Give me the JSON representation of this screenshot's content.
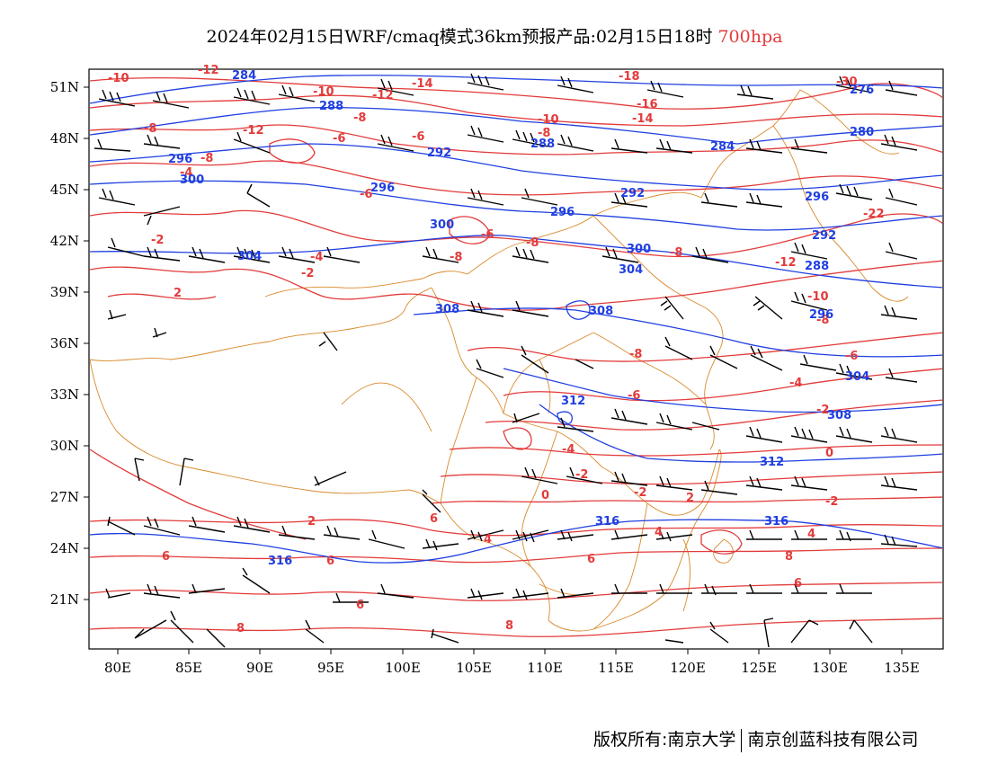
{
  "title": {
    "text": "2024年02月15日WRF/cmaq模式36km预报产品:02月15日18时",
    "level": "700hpa",
    "level_color": "#e53a3a"
  },
  "axes": {
    "lat_labels": [
      "51N",
      "48N",
      "45N",
      "42N",
      "39N",
      "36N",
      "33N",
      "30N",
      "27N",
      "24N",
      "21N"
    ],
    "lon_labels": [
      "80E",
      "85E",
      "90E",
      "95E",
      "100E",
      "105E",
      "110E",
      "115E",
      "120E",
      "125E",
      "130E",
      "135E"
    ]
  },
  "colors": {
    "temperature": "#e23b3b",
    "geopotential": "#1f3fe0",
    "borders": "#d98a2b",
    "wind_barbs": "#000000"
  },
  "temperature_labels": [
    "-10",
    "-12",
    "-14",
    "-10",
    "-12",
    "-8",
    "-10",
    "-16",
    "-14",
    "-18",
    "-30",
    "-8",
    "-12",
    "-8",
    "-6",
    "-6",
    "-4",
    "-8",
    "-6",
    "-22",
    "-2",
    "-6",
    "-8",
    "-8",
    "-4",
    "-2",
    "-8",
    "-12",
    "-10",
    "-8",
    "2",
    "-6",
    "-8",
    "-6",
    "-4",
    "-2",
    "-4",
    "-2",
    "0",
    "-2",
    "0",
    "-2",
    "2",
    "6",
    "2",
    "4",
    "4",
    "4",
    "6",
    "6",
    "6",
    "8",
    "6",
    "6",
    "8",
    "8"
  ],
  "geopotential_labels": [
    "284",
    "288",
    "296",
    "300",
    "296",
    "292",
    "296",
    "288",
    "284",
    "280",
    "276",
    "292",
    "296",
    "300",
    "304",
    "300",
    "304",
    "292",
    "288",
    "296",
    "308",
    "308",
    "312",
    "312",
    "308",
    "304",
    "316",
    "316",
    "316"
  ],
  "footer": {
    "left": "版权所有:南京大学",
    "right": "南京创蓝科技有限公司"
  }
}
